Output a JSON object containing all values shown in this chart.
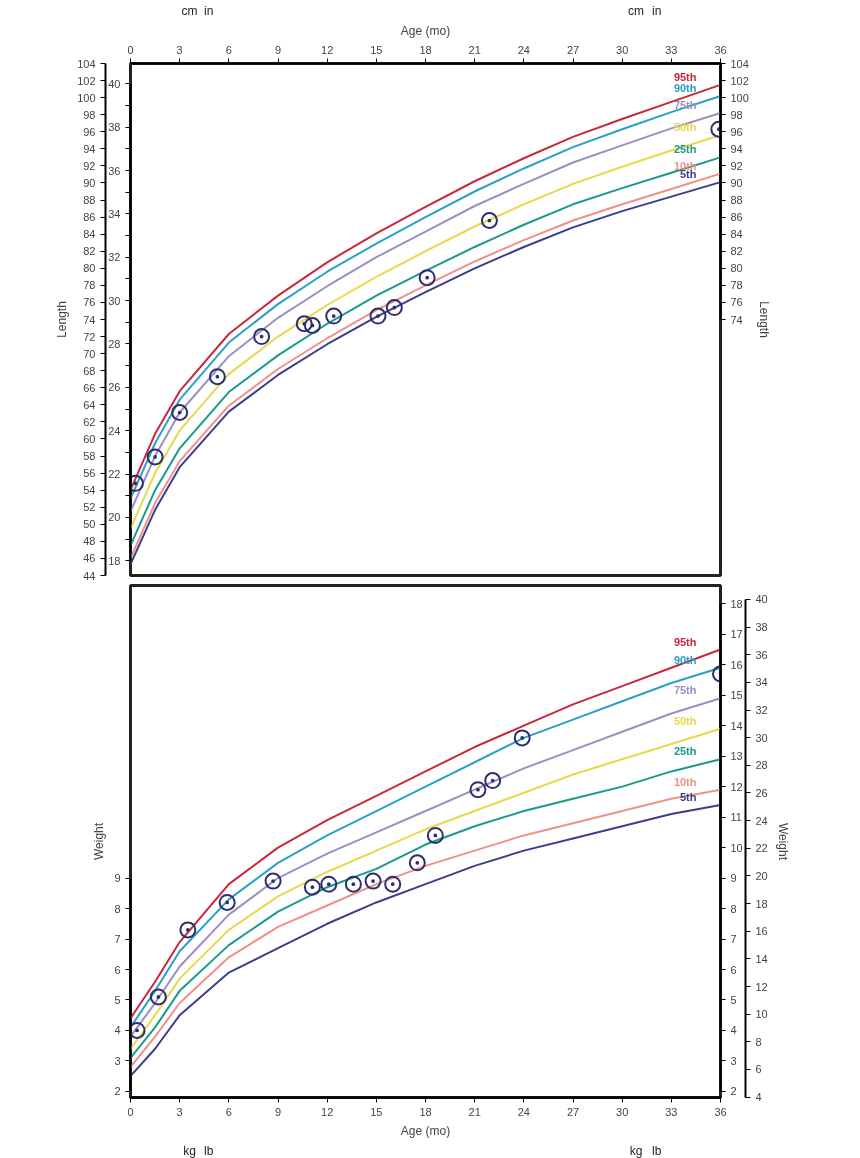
{
  "chart_data": [
    {
      "type": "line",
      "xlabel": "Age (mo)",
      "xlim": [
        0,
        36
      ],
      "xticks": [
        0,
        3,
        6,
        9,
        12,
        15,
        18,
        21,
        24,
        27,
        30,
        33,
        36
      ],
      "ylabel": "Length",
      "y2label": "Length",
      "ylim": [
        44,
        104
      ],
      "yticks": [
        44,
        46,
        48,
        50,
        52,
        54,
        56,
        58,
        60,
        62,
        64,
        66,
        68,
        70,
        72,
        74,
        76,
        78,
        80,
        82,
        84,
        86,
        88,
        90,
        92,
        94,
        96,
        98,
        100,
        102,
        104
      ],
      "y2lim": [
        44,
        104
      ],
      "y2ticks": [
        74,
        76,
        78,
        80,
        82,
        84,
        86,
        88,
        90,
        92,
        94,
        96,
        98,
        100,
        102,
        104
      ],
      "y3lim": [
        17.32,
        40.94
      ],
      "y3ticks": [
        18,
        {
          "value": 19,
          "label": null
        },
        20,
        {
          "value": 21,
          "label": null
        },
        22,
        {
          "value": 23,
          "label": null
        },
        24,
        {
          "value": 25,
          "label": null
        },
        26,
        {
          "value": 27,
          "label": null
        },
        28,
        {
          "value": 29,
          "label": null
        },
        30,
        {
          "value": 31,
          "label": null
        },
        32,
        {
          "value": 33,
          "label": null
        },
        34,
        {
          "value": 35,
          "label": null
        },
        36,
        {
          "value": 37,
          "label": null
        },
        38,
        {
          "value": 39,
          "label": null
        },
        40
      ],
      "annotations": [
        "cm",
        "in",
        "cm",
        "in"
      ],
      "grid": false,
      "x": [
        0,
        1.5,
        3,
        6,
        9,
        12,
        15,
        18,
        21,
        24,
        27,
        30,
        33,
        36
      ],
      "series": [
        {
          "name": "95th",
          "color": "#c8283c",
          "values": [
            54.0,
            60.6,
            65.6,
            72.3,
            76.8,
            80.7,
            84.1,
            87.2,
            90.2,
            92.9,
            95.4,
            97.5,
            99.5,
            101.5
          ]
        },
        {
          "name": "90th",
          "color": "#2aa0c8",
          "values": [
            53.0,
            59.5,
            64.6,
            71.3,
            75.8,
            79.6,
            82.9,
            86.0,
            89.0,
            91.7,
            94.2,
            96.3,
            98.3,
            100.2
          ]
        },
        {
          "name": "75th",
          "color": "#9a8fc4",
          "values": [
            51.5,
            58.0,
            63.1,
            69.7,
            74.2,
            77.9,
            81.3,
            84.3,
            87.3,
            89.9,
            92.4,
            94.4,
            96.4,
            98.2
          ]
        },
        {
          "name": "50th",
          "color": "#e8d84a",
          "values": [
            49.5,
            56.0,
            61.0,
            67.6,
            72.0,
            75.7,
            79.0,
            82.0,
            84.9,
            87.5,
            89.9,
            91.9,
            93.8,
            95.6
          ]
        },
        {
          "name": "25th",
          "color": "#1a9a8a",
          "values": [
            47.5,
            54.0,
            58.9,
            65.5,
            69.8,
            73.5,
            76.8,
            79.7,
            82.5,
            85.1,
            87.5,
            89.4,
            91.2,
            93.0
          ]
        },
        {
          "name": "10th",
          "color": "#f0908a",
          "values": [
            46.0,
            52.5,
            57.4,
            63.9,
            68.2,
            71.8,
            75.1,
            78.0,
            80.8,
            83.3,
            85.6,
            87.5,
            89.3,
            91.1
          ]
        },
        {
          "name": "5th",
          "color": "#3a3f8a",
          "values": [
            45.3,
            51.7,
            56.7,
            63.2,
            67.5,
            71.1,
            74.3,
            77.2,
            80.0,
            82.5,
            84.8,
            86.7,
            88.4,
            90.1
          ]
        },
        {
          "type": "scatter",
          "marker": "circle",
          "color": "#2e2e6e",
          "x": [
            0.3,
            1.5,
            3.0,
            5.3,
            8.0,
            10.6,
            11.1,
            12.4,
            15.1,
            16.1,
            18.1,
            21.9,
            35.9
          ],
          "values": [
            54.8,
            57.9,
            63.1,
            67.3,
            72.0,
            73.5,
            73.3,
            74.4,
            74.4,
            75.4,
            78.9,
            85.6,
            96.3
          ]
        }
      ]
    },
    {
      "type": "line",
      "xlabel": "Age (mo)",
      "xlim": [
        0,
        36
      ],
      "xticks": [
        0,
        3,
        6,
        9,
        12,
        15,
        18,
        21,
        24,
        27,
        30,
        33,
        36
      ],
      "ylabel": "Weight",
      "y2label": "Weight",
      "ylim": [
        1.8,
        18.6
      ],
      "yticks": [
        2,
        3,
        4,
        5,
        6,
        7,
        8,
        9
      ],
      "y2lim": [
        1.8,
        18.6
      ],
      "y2ticks": [
        2,
        3,
        4,
        5,
        6,
        7,
        8,
        9,
        10,
        11,
        12,
        13,
        14,
        15,
        16,
        17,
        18
      ],
      "y3lim": [
        3.97,
        41.01
      ],
      "y3ticks": [
        4,
        6,
        8,
        10,
        12,
        14,
        16,
        18,
        20,
        22,
        24,
        26,
        28,
        30,
        32,
        34,
        36,
        38,
        40
      ],
      "annotations": [
        "kg",
        "lb",
        "kg",
        "lb"
      ],
      "grid": false,
      "x": [
        0,
        1.5,
        3,
        6,
        9,
        12,
        15,
        18,
        21,
        24,
        27,
        30,
        33,
        36
      ],
      "series": [
        {
          "name": "95th",
          "color": "#c8283c",
          "values": [
            4.4,
            5.6,
            6.9,
            8.8,
            10.0,
            10.9,
            11.7,
            12.5,
            13.3,
            14.0,
            14.7,
            15.3,
            15.9,
            16.5
          ]
        },
        {
          "name": "90th",
          "color": "#2aa0c8",
          "values": [
            4.1,
            5.3,
            6.6,
            8.3,
            9.5,
            10.4,
            11.2,
            12.0,
            12.8,
            13.6,
            14.2,
            14.8,
            15.4,
            15.9
          ]
        },
        {
          "name": "75th",
          "color": "#9a8fc4",
          "values": [
            3.8,
            4.9,
            6.1,
            7.8,
            9.0,
            9.8,
            10.5,
            11.2,
            11.9,
            12.6,
            13.2,
            13.8,
            14.4,
            14.9
          ]
        },
        {
          "name": "50th",
          "color": "#e8d84a",
          "values": [
            3.4,
            4.5,
            5.7,
            7.3,
            8.4,
            9.2,
            9.9,
            10.6,
            11.2,
            11.8,
            12.4,
            12.9,
            13.4,
            13.9
          ]
        },
        {
          "name": "25th",
          "color": "#1a9a8a",
          "values": [
            3.1,
            4.1,
            5.3,
            6.8,
            7.9,
            8.7,
            9.3,
            10.1,
            10.7,
            11.2,
            11.6,
            12.0,
            12.5,
            12.9
          ]
        },
        {
          "name": "10th",
          "color": "#f0908a",
          "values": [
            2.8,
            3.8,
            4.9,
            6.4,
            7.4,
            8.1,
            8.8,
            9.4,
            9.9,
            10.4,
            10.8,
            11.2,
            11.6,
            11.9
          ]
        },
        {
          "name": "5th",
          "color": "#3a3f8a",
          "values": [
            2.5,
            3.4,
            4.5,
            5.9,
            6.7,
            7.5,
            8.2,
            8.8,
            9.4,
            9.9,
            10.3,
            10.7,
            11.1,
            11.4
          ]
        },
        {
          "type": "scatter",
          "marker": "circle",
          "color": "#2e2e6e",
          "x": [
            0.4,
            1.7,
            3.5,
            5.9,
            8.7,
            11.1,
            12.1,
            13.6,
            14.8,
            16.0,
            17.5,
            18.6,
            21.2,
            22.1,
            23.9,
            36.0
          ],
          "values": [
            4.0,
            5.1,
            7.3,
            8.2,
            8.9,
            8.7,
            8.8,
            8.8,
            8.9,
            8.8,
            9.5,
            10.4,
            11.9,
            12.2,
            13.6,
            15.7
          ]
        }
      ]
    }
  ]
}
